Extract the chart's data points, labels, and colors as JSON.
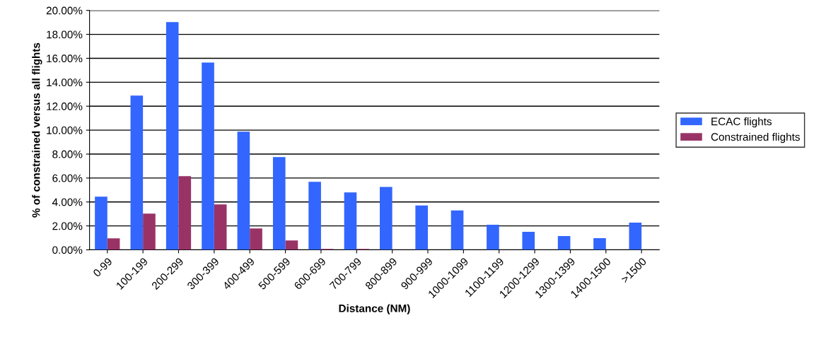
{
  "chart_data": {
    "type": "bar",
    "xlabel": "Distance (NM)",
    "ylabel": "% of constrained versus all flights",
    "categories": [
      "0-99",
      "100-199",
      "200-299",
      "300-399",
      "400-499",
      "500-599",
      "600-699",
      "700-799",
      "800-899",
      "900-999",
      "1000-1099",
      "1100-1199",
      "1200-1299",
      "1300-1399",
      "1400-1500",
      ">1500"
    ],
    "series": [
      {
        "name": "ECAC flights",
        "color": "#3366ff",
        "values": [
          4.44,
          12.88,
          19.02,
          15.65,
          9.87,
          7.75,
          5.68,
          4.8,
          5.25,
          3.7,
          3.29,
          2.1,
          1.5,
          1.15,
          0.97,
          2.28
        ]
      },
      {
        "name": "Constrained flights",
        "color": "#993366",
        "values": [
          0.96,
          3.03,
          6.16,
          3.8,
          1.79,
          0.79,
          0.08,
          0.08,
          0,
          0,
          0,
          0,
          0,
          0,
          0,
          0
        ]
      }
    ],
    "ylim": [
      0,
      20
    ],
    "yticks": [
      {
        "value": 0,
        "label": "0.00%"
      },
      {
        "value": 2,
        "label": "2.00%"
      },
      {
        "value": 4,
        "label": "4.00%"
      },
      {
        "value": 6,
        "label": "6.00%"
      },
      {
        "value": 8,
        "label": "8.00%"
      },
      {
        "value": 10,
        "label": "10.00%"
      },
      {
        "value": 12,
        "label": "12.00%"
      },
      {
        "value": 14,
        "label": "14.00%"
      },
      {
        "value": 16,
        "label": "16.00%"
      },
      {
        "value": 18,
        "label": "18.00%"
      },
      {
        "value": 20,
        "label": "20.00%"
      }
    ],
    "grid": "y",
    "legend": "right"
  }
}
